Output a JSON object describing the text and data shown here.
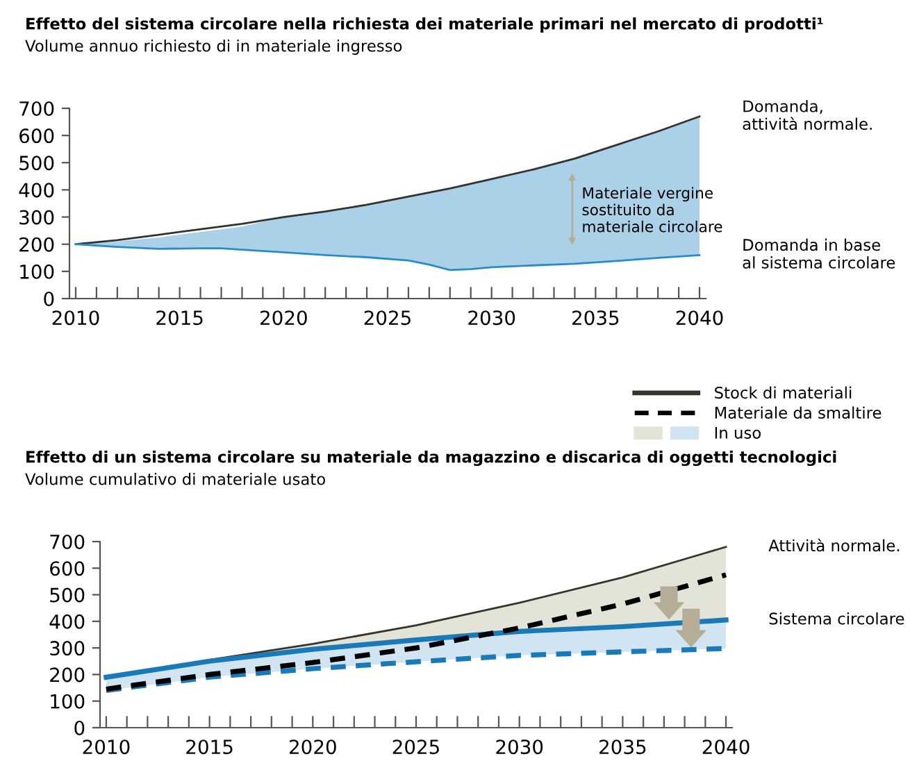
{
  "chart_data": [
    {
      "type": "line",
      "title": "Effetto del sistema circolare nella richiesta dei materiale primari nel mercato di prodotti¹",
      "subtitle": "Volume annuo richiesto di in materiale ingresso",
      "series": [
        {
          "color": "#333333",
          "x": [
            2010,
            2012,
            2014,
            2016,
            2018,
            2020,
            2022,
            2024,
            2026,
            2028,
            2030,
            2032,
            2034,
            2036,
            2038,
            2040
          ],
          "values": [
            200,
            215,
            235,
            255,
            275,
            300,
            320,
            345,
            375,
            405,
            440,
            475,
            515,
            565,
            615,
            670
          ]
        },
        {
          "color": "#2a8cc4",
          "x": [
            2010,
            2012,
            2014,
            2016,
            2017,
            2018,
            2020,
            2022,
            2024,
            2026,
            2027,
            2028,
            2029,
            2030,
            2032,
            2034,
            2036,
            2038,
            2040
          ],
          "values": [
            200,
            190,
            183,
            185,
            185,
            180,
            170,
            160,
            152,
            140,
            125,
            105,
            108,
            115,
            122,
            128,
            138,
            150,
            160
          ],
          "lower": [
            200,
            190,
            183,
            185,
            185,
            180,
            170,
            160,
            152,
            140,
            125,
            105,
            108,
            115,
            122,
            128,
            138,
            150,
            160
          ],
          "upper": [
            200,
            210,
            225,
            245,
            255,
            265,
            300,
            320,
            345,
            375,
            390,
            405,
            422,
            440,
            475,
            515,
            565,
            615,
            670
          ]
        }
      ],
      "annotations": [
        "Domanda,\nattività normale.",
        "Domanda in base\nal sistema circolare",
        "Materiale vergine\nsostituito da\nmateriale circolare"
      ],
      "xlim": [
        2009.7,
        2040.3
      ],
      "ylim": [
        0,
        700
      ],
      "yticks": [
        0,
        100,
        200,
        300,
        400,
        500,
        600,
        700
      ],
      "xticks": [
        2010,
        {
          "value": 2011,
          "label": null
        },
        {
          "value": 2012,
          "label": null
        },
        {
          "value": 2013,
          "label": null
        },
        {
          "value": 2014,
          "label": null
        },
        2015,
        {
          "value": 2016,
          "label": null
        },
        {
          "value": 2017,
          "label": null
        },
        {
          "value": 2018,
          "label": null
        },
        {
          "value": 2019,
          "label": null
        },
        2020,
        {
          "value": 2021,
          "label": null
        },
        {
          "value": 2022,
          "label": null
        },
        {
          "value": 2023,
          "label": null
        },
        {
          "value": 2024,
          "label": null
        },
        2025,
        {
          "value": 2026,
          "label": null
        },
        {
          "value": 2027,
          "label": null
        },
        {
          "value": 2028,
          "label": null
        },
        {
          "value": 2029,
          "label": null
        },
        2030,
        {
          "value": 2031,
          "label": null
        },
        {
          "value": 2032,
          "label": null
        },
        {
          "value": 2033,
          "label": null
        },
        {
          "value": 2034,
          "label": null
        },
        2035,
        {
          "value": 2036,
          "label": null
        },
        {
          "value": 2037,
          "label": null
        },
        {
          "value": 2038,
          "label": null
        },
        {
          "value": 2039,
          "label": null
        },
        2040
      ],
      "grid": false
    },
    {
      "type": "line",
      "title": "Effetto di un sistema circolare su materiale da magazzino e discarica di oggetti tecnologici",
      "subtitle": "Volume cumulativo di materiale usato",
      "series": [
        {
          "name": "Stock di materiali",
          "color": "#35352c",
          "line_style": "solid",
          "x": [
            2010,
            2015,
            2020,
            2025,
            2030,
            2035,
            2040
          ],
          "values": [
            190,
            255,
            315,
            385,
            470,
            565,
            680
          ]
        },
        {
          "color": "#1a7ab8",
          "line_style": "solid",
          "x": [
            2010,
            2015,
            2020,
            2025,
            2030,
            2035,
            2040
          ],
          "values": [
            190,
            250,
            295,
            330,
            362,
            380,
            405
          ],
          "lower": [
            190,
            250,
            295,
            330,
            362,
            380,
            405
          ],
          "upper": [
            190,
            255,
            315,
            385,
            470,
            565,
            680
          ]
        },
        {
          "color": "#1a7ab8",
          "line_style": "dashed",
          "x": [
            2010,
            2015,
            2020,
            2025,
            2030,
            2035,
            2040
          ],
          "values": [
            140,
            190,
            222,
            248,
            272,
            285,
            298
          ],
          "lower": [
            140,
            190,
            222,
            248,
            272,
            285,
            298
          ],
          "upper": [
            190,
            250,
            295,
            330,
            362,
            380,
            405
          ]
        },
        {
          "name": "Materiale da smaltire",
          "color": "#000000",
          "line_style": "dashed",
          "x": [
            2010,
            2015,
            2020,
            2025,
            2030,
            2035,
            2040
          ],
          "values": [
            145,
            200,
            245,
            300,
            375,
            465,
            575
          ]
        }
      ],
      "annotations": [
        "Attività normale.",
        "Sistema circolare",
        "In uso"
      ],
      "xlim": [
        2009.7,
        2040.3
      ],
      "ylim": [
        0,
        700
      ],
      "yticks": [
        0,
        100,
        200,
        300,
        400,
        500,
        600,
        700
      ],
      "xticks": [
        2010,
        {
          "value": 2011,
          "label": null
        },
        {
          "value": 2012,
          "label": null
        },
        {
          "value": 2013,
          "label": null
        },
        {
          "value": 2014,
          "label": null
        },
        2015,
        {
          "value": 2016,
          "label": null
        },
        {
          "value": 2017,
          "label": null
        },
        {
          "value": 2018,
          "label": null
        },
        {
          "value": 2019,
          "label": null
        },
        2020,
        {
          "value": 2021,
          "label": null
        },
        {
          "value": 2022,
          "label": null
        },
        {
          "value": 2023,
          "label": null
        },
        {
          "value": 2024,
          "label": null
        },
        2025,
        {
          "value": 2026,
          "label": null
        },
        {
          "value": 2027,
          "label": null
        },
        {
          "value": 2028,
          "label": null
        },
        {
          "value": 2029,
          "label": null
        },
        2030,
        {
          "value": 2031,
          "label": null
        },
        {
          "value": 2032,
          "label": null
        },
        {
          "value": 2033,
          "label": null
        },
        {
          "value": 2034,
          "label": null
        },
        2035,
        {
          "value": 2036,
          "label": null
        },
        {
          "value": 2037,
          "label": null
        },
        {
          "value": 2038,
          "label": null
        },
        {
          "value": 2039,
          "label": null
        },
        2040
      ],
      "grid": false,
      "legend": "top right"
    }
  ]
}
